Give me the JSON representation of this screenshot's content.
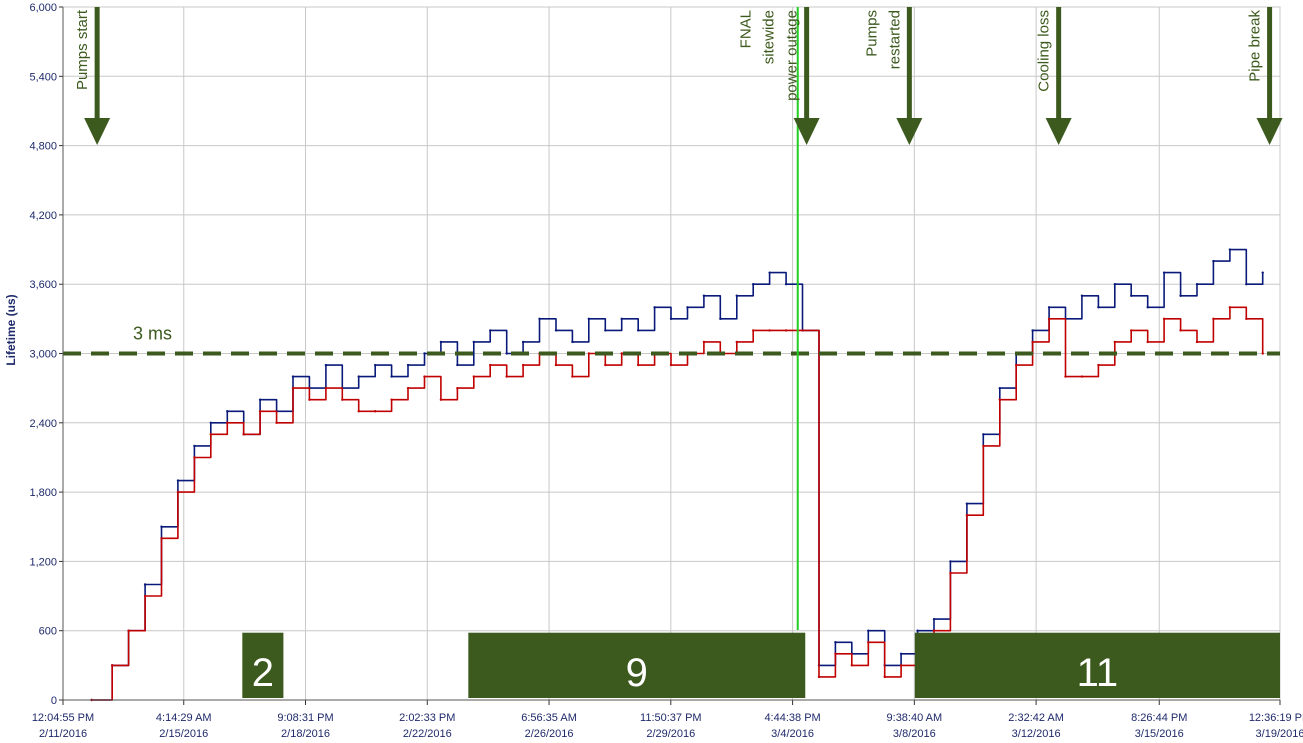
{
  "chart_data": {
    "type": "line",
    "ylabel": "Lifetime (us)",
    "ylim": [
      0,
      6000
    ],
    "yticks": [
      "0",
      "600",
      "1,200",
      "1,800",
      "2,400",
      "3,000",
      "3,600",
      "4,200",
      "4,800",
      "5,400",
      "6,000"
    ],
    "ytick_values": [
      0,
      600,
      1200,
      1800,
      2400,
      3000,
      3600,
      4200,
      4800,
      5400,
      6000
    ],
    "xlim": [
      "2016-02-11T12:04:55",
      "2016-03-19T12:36:19"
    ],
    "xticks": [
      {
        "time": "12:04:55 PM",
        "date": "2/11/2016",
        "t": "2016-02-11T12:04:55"
      },
      {
        "time": "4:14:29 AM",
        "date": "2/15/2016",
        "t": "2016-02-15T04:14:29"
      },
      {
        "time": "9:08:31 PM",
        "date": "2/18/2016",
        "t": "2016-02-18T21:08:31"
      },
      {
        "time": "2:02:33 PM",
        "date": "2/22/2016",
        "t": "2016-02-22T14:02:33"
      },
      {
        "time": "6:56:35 AM",
        "date": "2/26/2016",
        "t": "2016-02-26T06:56:35"
      },
      {
        "time": "11:50:37 PM",
        "date": "2/29/2016",
        "t": "2016-02-29T23:50:37"
      },
      {
        "time": "4:44:38 PM",
        "date": "3/4/2016",
        "t": "2016-03-04T16:44:38"
      },
      {
        "time": "9:38:40 AM",
        "date": "3/8/2016",
        "t": "2016-03-08T09:38:40"
      },
      {
        "time": "2:32:42 AM",
        "date": "3/12/2016",
        "t": "2016-03-12T02:32:42"
      },
      {
        "time": "8:26:44 PM",
        "date": "3/15/2016",
        "t": "2016-03-15T20:26:44"
      },
      {
        "time": "12:36:19 PM",
        "date": "3/19/2016",
        "t": "2016-03-19T12:36:19"
      }
    ],
    "grid": true,
    "threshold": {
      "value": 3000,
      "label": "3 ms",
      "color": "#3c5a1e"
    },
    "series": [
      {
        "color": "#0a1a7a",
        "x": [
          "2016-02-12T09:00",
          "2016-02-13T00:00",
          "2016-02-13T12:00",
          "2016-02-14T00:00",
          "2016-02-14T12:00",
          "2016-02-15T00:00",
          "2016-02-15T12:00",
          "2016-02-16T00:00",
          "2016-02-16T12:00",
          "2016-02-17T00:00",
          "2016-02-17T12:00",
          "2016-02-18T00:00",
          "2016-02-18T12:00",
          "2016-02-19T00:00",
          "2016-02-19T12:00",
          "2016-02-20T00:00",
          "2016-02-20T12:00",
          "2016-02-21T00:00",
          "2016-02-21T12:00",
          "2016-02-22T00:00",
          "2016-02-22T12:00",
          "2016-02-23T00:00",
          "2016-02-23T12:00",
          "2016-02-24T00:00",
          "2016-02-24T12:00",
          "2016-02-25T00:00",
          "2016-02-25T12:00",
          "2016-02-26T00:00",
          "2016-02-26T12:00",
          "2016-02-27T00:00",
          "2016-02-27T12:00",
          "2016-02-28T00:00",
          "2016-02-28T12:00",
          "2016-02-29T00:00",
          "2016-02-29T12:00",
          "2016-03-01T00:00",
          "2016-03-01T12:00",
          "2016-03-02T00:00",
          "2016-03-02T12:00",
          "2016-03-03T00:00",
          "2016-03-03T12:00",
          "2016-03-04T00:00",
          "2016-03-04T12:00",
          "2016-03-05T00:00",
          "2016-03-05T12:00",
          "2016-03-06T00:00",
          "2016-03-06T12:00",
          "2016-03-07T00:00",
          "2016-03-07T12:00",
          "2016-03-08T00:00",
          "2016-03-08T12:00",
          "2016-03-09T00:00",
          "2016-03-09T12:00",
          "2016-03-10T00:00",
          "2016-03-10T12:00",
          "2016-03-11T00:00",
          "2016-03-11T12:00",
          "2016-03-12T00:00",
          "2016-03-12T12:00",
          "2016-03-13T00:00",
          "2016-03-13T12:00",
          "2016-03-14T00:00",
          "2016-03-14T12:00",
          "2016-03-15T00:00",
          "2016-03-15T12:00",
          "2016-03-16T00:00",
          "2016-03-16T12:00",
          "2016-03-17T00:00",
          "2016-03-17T12:00",
          "2016-03-18T00:00",
          "2016-03-18T12:00",
          "2016-03-19T00:00"
        ],
        "y": [
          0,
          300,
          600,
          1000,
          1500,
          1900,
          2200,
          2400,
          2500,
          2300,
          2600,
          2500,
          2800,
          2700,
          2900,
          2700,
          2800,
          2900,
          2800,
          2900,
          3000,
          3100,
          2900,
          3100,
          3200,
          3000,
          3100,
          3300,
          3200,
          3100,
          3300,
          3200,
          3300,
          3200,
          3400,
          3300,
          3400,
          3500,
          3300,
          3500,
          3600,
          3700,
          3600,
          3200,
          300,
          500,
          400,
          600,
          300,
          400,
          600,
          700,
          1200,
          1700,
          2300,
          2700,
          3000,
          3200,
          3400,
          3300,
          3500,
          3400,
          3600,
          3500,
          3400,
          3700,
          3500,
          3600,
          3800,
          3900,
          3600,
          3700
        ]
      },
      {
        "color": "#c00000",
        "x": [
          "2016-02-12T09:00",
          "2016-02-13T00:00",
          "2016-02-13T12:00",
          "2016-02-14T00:00",
          "2016-02-14T12:00",
          "2016-02-15T00:00",
          "2016-02-15T12:00",
          "2016-02-16T00:00",
          "2016-02-16T12:00",
          "2016-02-17T00:00",
          "2016-02-17T12:00",
          "2016-02-18T00:00",
          "2016-02-18T12:00",
          "2016-02-19T00:00",
          "2016-02-19T12:00",
          "2016-02-20T00:00",
          "2016-02-20T12:00",
          "2016-02-21T00:00",
          "2016-02-21T12:00",
          "2016-02-22T00:00",
          "2016-02-22T12:00",
          "2016-02-23T00:00",
          "2016-02-23T12:00",
          "2016-02-24T00:00",
          "2016-02-24T12:00",
          "2016-02-25T00:00",
          "2016-02-25T12:00",
          "2016-02-26T00:00",
          "2016-02-26T12:00",
          "2016-02-27T00:00",
          "2016-02-27T12:00",
          "2016-02-28T00:00",
          "2016-02-28T12:00",
          "2016-02-29T00:00",
          "2016-02-29T12:00",
          "2016-03-01T00:00",
          "2016-03-01T12:00",
          "2016-03-02T00:00",
          "2016-03-02T12:00",
          "2016-03-03T00:00",
          "2016-03-03T12:00",
          "2016-03-04T00:00",
          "2016-03-04T12:00",
          "2016-03-05T00:00",
          "2016-03-05T12:00",
          "2016-03-06T00:00",
          "2016-03-06T12:00",
          "2016-03-07T00:00",
          "2016-03-07T12:00",
          "2016-03-08T00:00",
          "2016-03-08T12:00",
          "2016-03-09T00:00",
          "2016-03-09T12:00",
          "2016-03-10T00:00",
          "2016-03-10T12:00",
          "2016-03-11T00:00",
          "2016-03-11T12:00",
          "2016-03-12T00:00",
          "2016-03-12T12:00",
          "2016-03-13T00:00",
          "2016-03-13T12:00",
          "2016-03-14T00:00",
          "2016-03-14T12:00",
          "2016-03-15T00:00",
          "2016-03-15T12:00",
          "2016-03-16T00:00",
          "2016-03-16T12:00",
          "2016-03-17T00:00",
          "2016-03-17T12:00",
          "2016-03-18T00:00",
          "2016-03-18T12:00",
          "2016-03-19T00:00"
        ],
        "y": [
          0,
          300,
          600,
          900,
          1400,
          1800,
          2100,
          2300,
          2400,
          2300,
          2500,
          2400,
          2700,
          2600,
          2700,
          2600,
          2500,
          2500,
          2600,
          2700,
          2800,
          2600,
          2700,
          2800,
          2900,
          2800,
          2900,
          3000,
          2900,
          2800,
          3000,
          2900,
          3000,
          2900,
          3000,
          2900,
          3000,
          3100,
          3000,
          3100,
          3200,
          3200,
          3200,
          3200,
          200,
          400,
          300,
          500,
          200,
          300,
          500,
          600,
          1100,
          1600,
          2200,
          2600,
          2900,
          3100,
          3300,
          2800,
          2800,
          2900,
          3100,
          3200,
          3100,
          3300,
          3200,
          3100,
          3300,
          3400,
          3300,
          3000
        ]
      }
    ],
    "annotations": [
      {
        "lines": [
          "Pumps start"
        ],
        "t": "2016-02-12T13:00"
      },
      {
        "lines": [
          "FNAL",
          "sitewide",
          "power outage"
        ],
        "t": "2016-03-05T03:00",
        "vline_t": "2016-03-04T20:30"
      },
      {
        "lines": [
          "Pumps",
          "restarted"
        ],
        "t": "2016-03-08T06:00"
      },
      {
        "lines": [
          "Cooling loss"
        ],
        "t": "2016-03-12T19:00"
      },
      {
        "lines": [
          "Pipe break"
        ],
        "t": "2016-03-19T05:00"
      }
    ],
    "regions": [
      {
        "label": "2",
        "start": "2016-02-16T23:00",
        "end": "2016-02-18T05:00"
      },
      {
        "label": "9",
        "start": "2016-02-23T20:00",
        "end": "2016-03-05T02:00"
      },
      {
        "label": "11",
        "start": "2016-03-08T10:00",
        "end": "2016-03-19T15:00"
      }
    ],
    "colors": {
      "accent": "#3c5a1e",
      "blue": "#0a1a7a",
      "red": "#c00000",
      "outage_line": "#22cc22"
    }
  }
}
